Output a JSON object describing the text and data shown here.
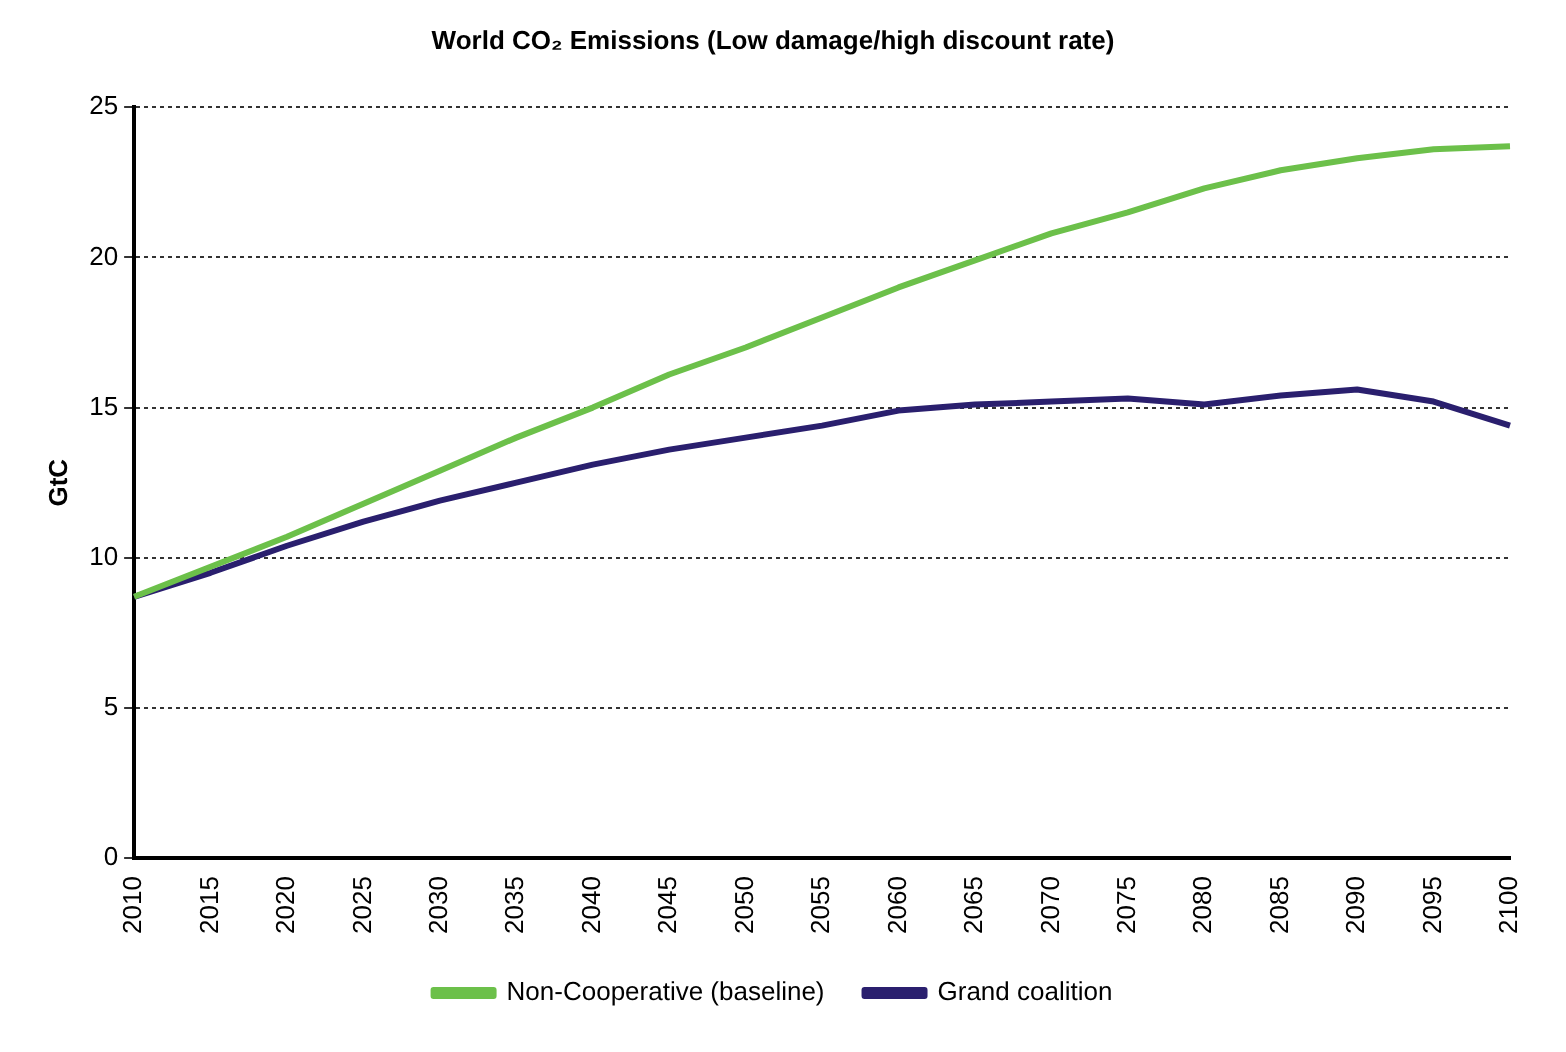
{
  "chart_data": {
    "type": "line",
    "title": "World CO₂ Emissions (Low damage/high discount rate)",
    "ylabel": "GtC",
    "categories": [
      "2010",
      "2015",
      "2020",
      "2025",
      "2030",
      "2035",
      "2040",
      "2045",
      "2050",
      "2055",
      "2060",
      "2065",
      "2070",
      "2075",
      "2080",
      "2085",
      "2090",
      "2095",
      "2100"
    ],
    "series": [
      {
        "name": "Non-Cooperative (baseline)",
        "color": "#6cc04a",
        "values": [
          8.7,
          9.7,
          10.7,
          11.8,
          12.9,
          14.0,
          15.0,
          16.1,
          17.0,
          18.0,
          19.0,
          19.9,
          20.8,
          21.5,
          22.3,
          22.9,
          23.3,
          23.6,
          23.7
        ]
      },
      {
        "name": "Grand coalition",
        "color": "#2a1f6e",
        "values": [
          8.7,
          9.5,
          10.4,
          11.2,
          11.9,
          12.5,
          13.1,
          13.6,
          14.0,
          14.4,
          14.9,
          15.1,
          15.2,
          15.3,
          15.1,
          15.4,
          15.6,
          15.2,
          14.4
        ]
      }
    ],
    "ylim": [
      0,
      25
    ],
    "yticks": [
      0,
      5,
      10,
      15,
      20,
      25
    ],
    "grid": "y",
    "legend": "bottom",
    "marker": "none",
    "line_style": "solid"
  }
}
